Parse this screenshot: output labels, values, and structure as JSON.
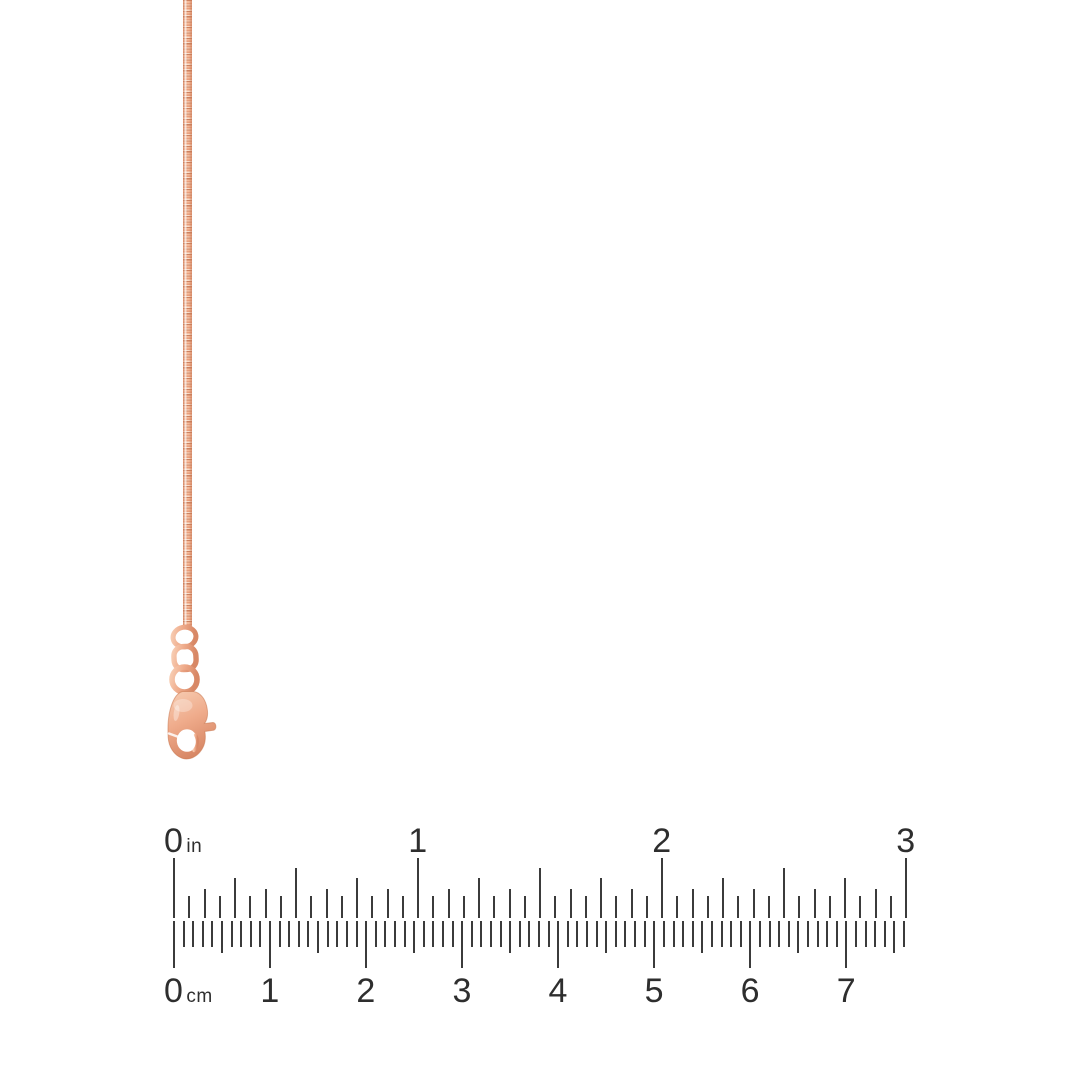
{
  "product": {
    "description": "rose gold box chain necklace with lobster clasp and jump rings",
    "rose_light": "#f7cdb3",
    "rose_mid": "#efab8b",
    "rose_dark": "#d88866",
    "rose_deep": "#c8764f",
    "chain_light": "#f9ddc9",
    "chain_body": "#e99e7c",
    "chain_mid": "#f4ba9a",
    "chain_dark": "#cd8260"
  },
  "ruler": {
    "tick_color": "#3b3b3b",
    "label_color": "#2e2e2e",
    "inch": {
      "unit_label": "in",
      "labels": [
        "0",
        "1",
        "2",
        "3"
      ],
      "min": 0,
      "max": 3,
      "minor_per_inch": 16
    },
    "cm": {
      "unit_label": "cm",
      "labels": [
        "0",
        "1",
        "2",
        "3",
        "4",
        "5",
        "6",
        "7"
      ],
      "min": 0,
      "total_mm_ticks": 76
    }
  }
}
